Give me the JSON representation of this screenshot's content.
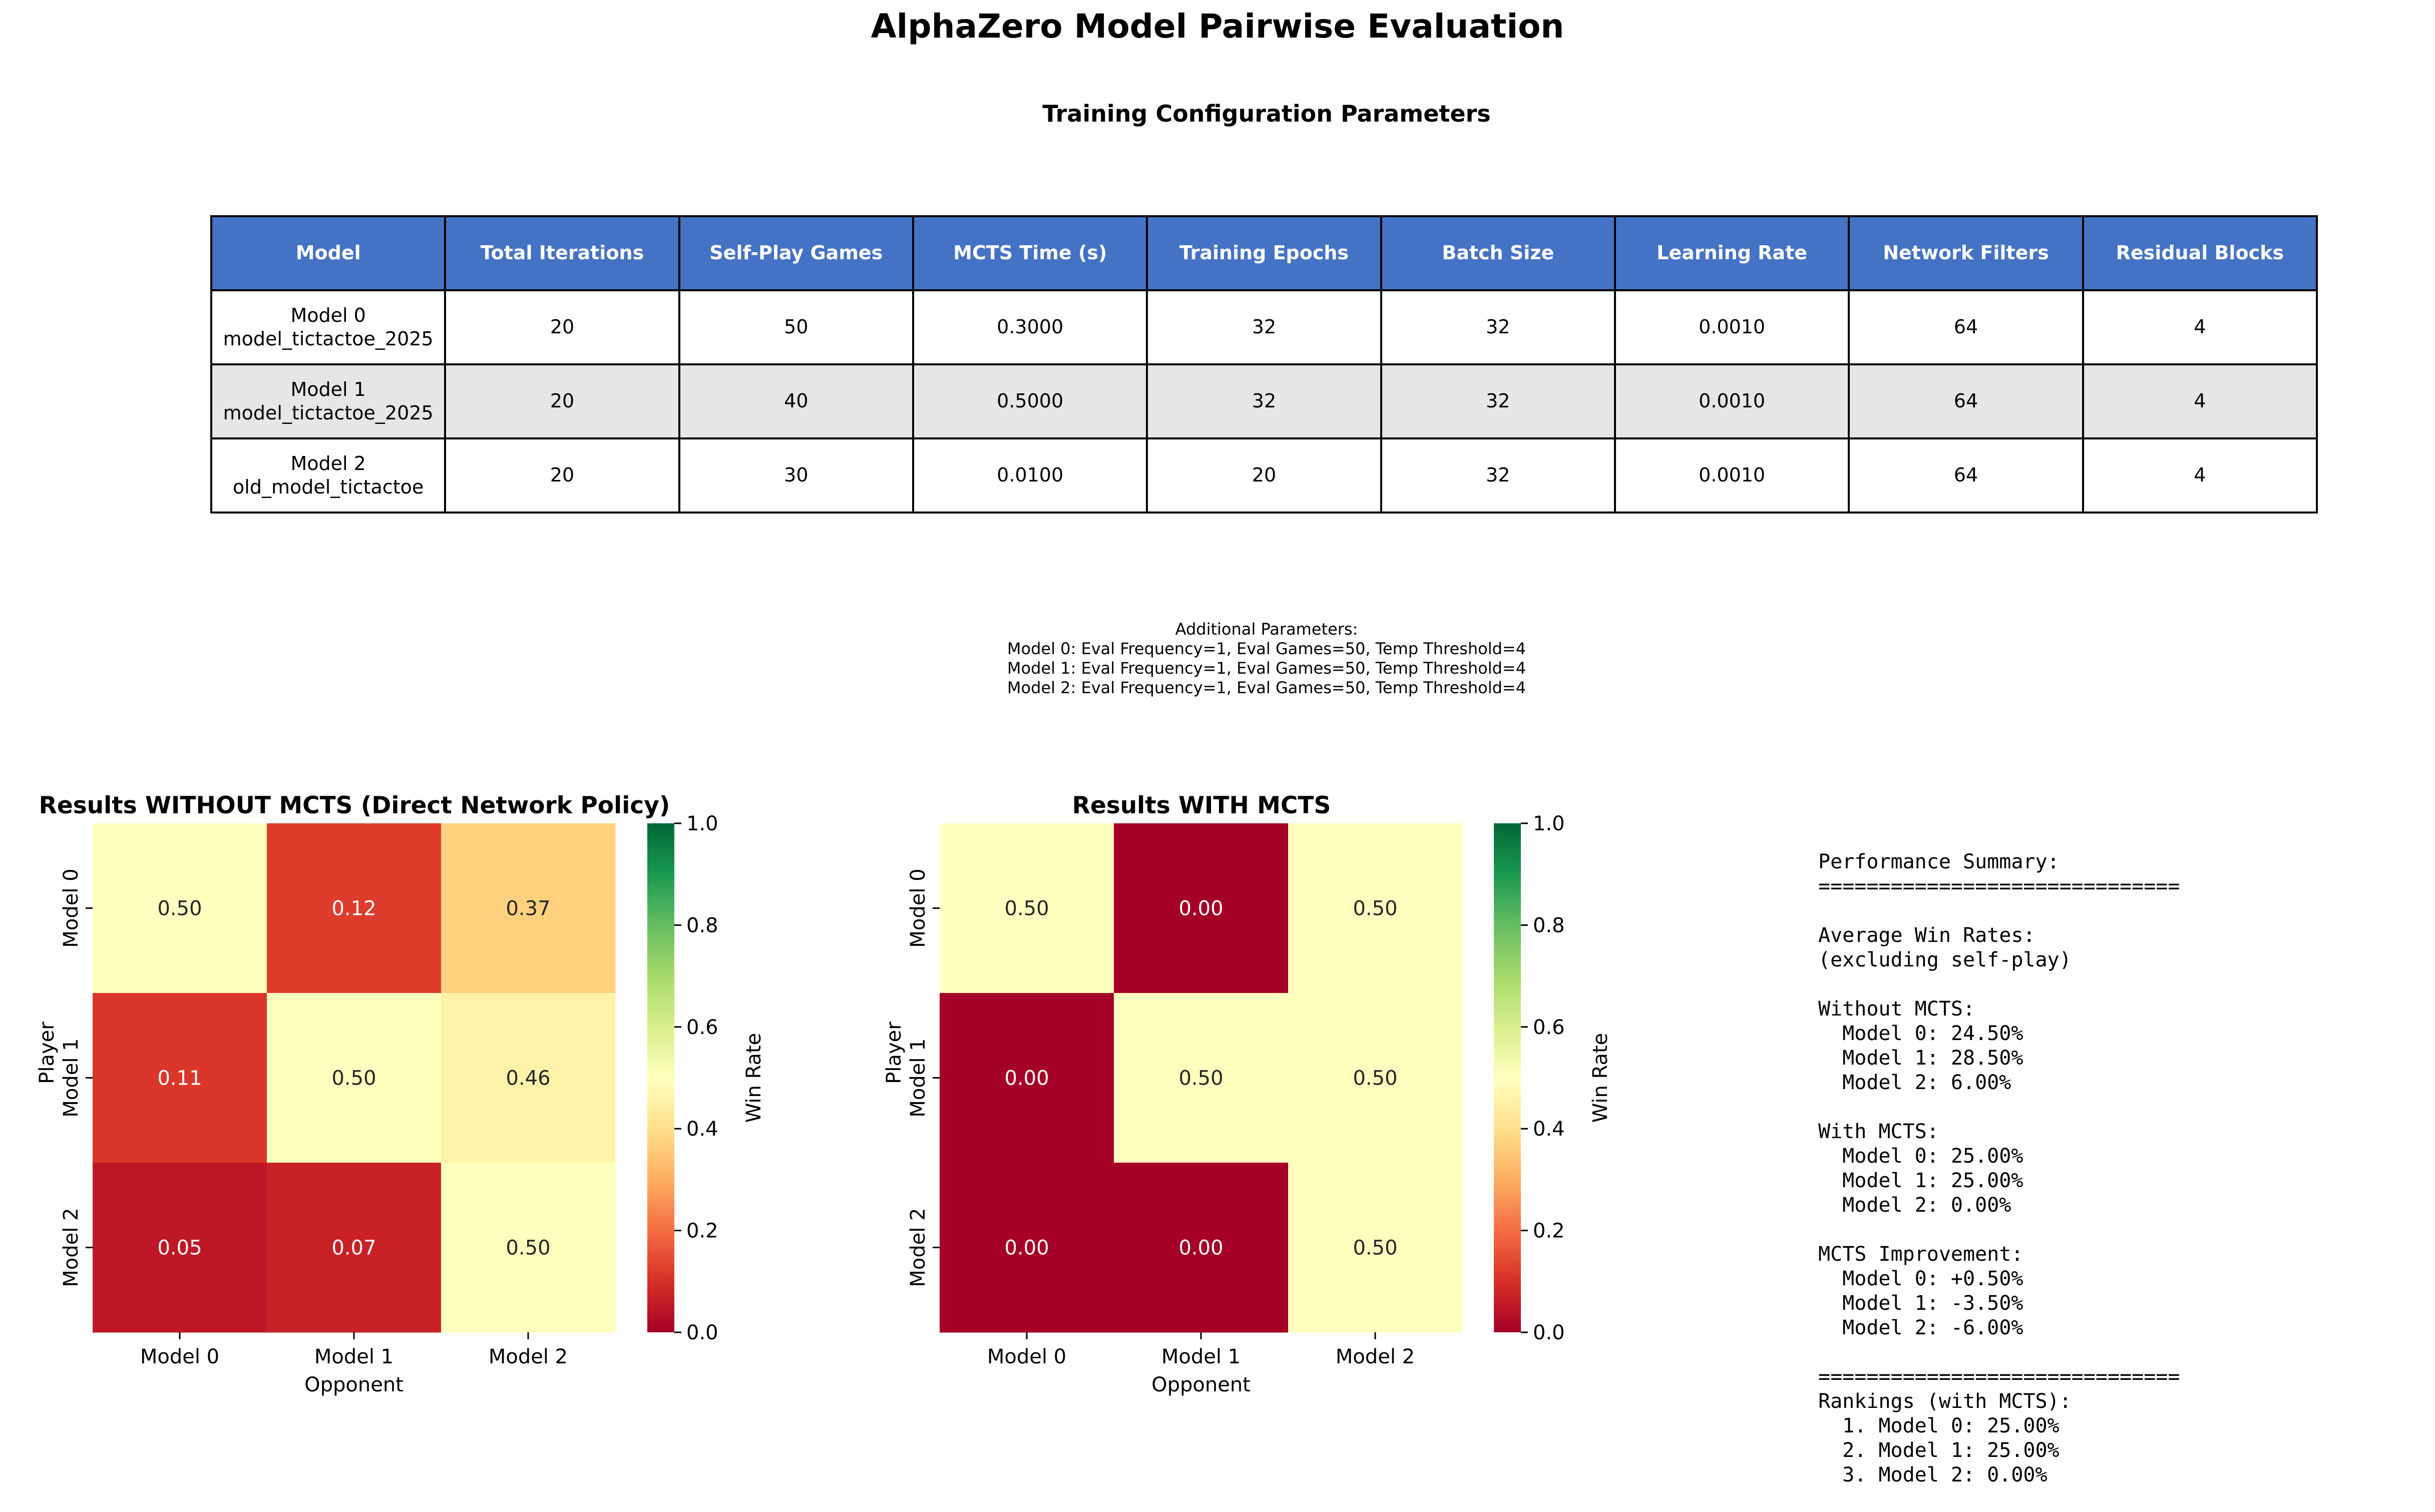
{
  "suptitle": "AlphaZero Model Pairwise Evaluation",
  "table": {
    "title": "Training Configuration Parameters",
    "headers": [
      "Model",
      "Total Iterations",
      "Self-Play Games",
      "MCTS Time (s)",
      "Training Epochs",
      "Batch Size",
      "Learning Rate",
      "Network Filters",
      "Residual Blocks"
    ],
    "rows": [
      [
        "Model 0\nmodel_tictactoe_2025",
        "20",
        "50",
        "0.3000",
        "32",
        "32",
        "0.0010",
        "64",
        "4"
      ],
      [
        "Model 1\nmodel_tictactoe_2025",
        "20",
        "40",
        "0.5000",
        "32",
        "32",
        "0.0010",
        "64",
        "4"
      ],
      [
        "Model 2\nold_model_tictactoe",
        "20",
        "30",
        "0.0100",
        "20",
        "32",
        "0.0010",
        "64",
        "4"
      ]
    ],
    "header_color": "#4472c4",
    "alt_row_color": "#e6e6e6"
  },
  "additional_params": [
    "Additional Parameters:",
    "Model 0: Eval Frequency=1, Eval Games=50, Temp Threshold=4",
    "Model 1: Eval Frequency=1, Eval Games=50, Temp Threshold=4",
    "Model 2: Eval Frequency=1, Eval Games=50, Temp Threshold=4"
  ],
  "chart_data": [
    {
      "type": "heatmap",
      "title": "Results WITHOUT MCTS (Direct Network Policy)",
      "xlabel": "Opponent",
      "ylabel": "Player",
      "x_categories": [
        "Model 0",
        "Model 1",
        "Model 2"
      ],
      "y_categories": [
        "Model 0",
        "Model 1",
        "Model 2"
      ],
      "values": [
        [
          0.5,
          0.12,
          0.37
        ],
        [
          0.11,
          0.5,
          0.46
        ],
        [
          0.05,
          0.07,
          0.5
        ]
      ],
      "colorbar_label": "Win Rate",
      "vmin": 0.0,
      "vmax": 1.0,
      "colorbar_ticks": [
        "0.0",
        "0.2",
        "0.4",
        "0.6",
        "0.8",
        "1.0"
      ],
      "colormap": "RdYlGn"
    },
    {
      "type": "heatmap",
      "title": "Results WITH MCTS",
      "xlabel": "Opponent",
      "ylabel": "Player",
      "x_categories": [
        "Model 0",
        "Model 1",
        "Model 2"
      ],
      "y_categories": [
        "Model 0",
        "Model 1",
        "Model 2"
      ],
      "values": [
        [
          0.5,
          0.0,
          0.5
        ],
        [
          0.0,
          0.5,
          0.5
        ],
        [
          0.0,
          0.0,
          0.5
        ]
      ],
      "colorbar_label": "Win Rate",
      "vmin": 0.0,
      "vmax": 1.0,
      "colorbar_ticks": [
        "0.0",
        "0.2",
        "0.4",
        "0.6",
        "0.8",
        "1.0"
      ],
      "colormap": "RdYlGn"
    }
  ],
  "summary_lines": [
    "Performance Summary:",
    "==============================",
    "",
    "Average Win Rates:",
    "(excluding self-play)",
    "",
    "Without MCTS:",
    "  Model 0: 24.50%",
    "  Model 1: 28.50%",
    "  Model 2: 6.00%",
    "",
    "With MCTS:",
    "  Model 0: 25.00%",
    "  Model 1: 25.00%",
    "  Model 2: 0.00%",
    "",
    "MCTS Improvement:",
    "  Model 0: +0.50%",
    "  Model 1: -3.50%",
    "  Model 2: -6.00%",
    "",
    "==============================",
    "Rankings (with MCTS):",
    "  1. Model 0: 25.00%",
    "  2. Model 1: 25.00%",
    "  3. Model 2: 0.00%"
  ]
}
